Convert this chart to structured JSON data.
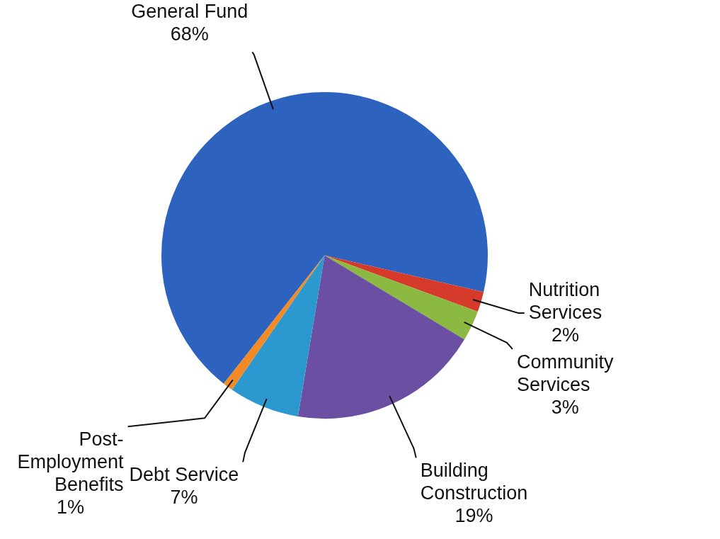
{
  "chart_data": {
    "type": "pie",
    "categories": [
      "General Fund",
      "Nutrition Services",
      "Community Services",
      "Building Construction",
      "Debt Service",
      "Post-Employment Benefits"
    ],
    "values": [
      68,
      2,
      3,
      19,
      7,
      1
    ],
    "colors": [
      "#2e62bf",
      "#d63a2a",
      "#8cb941",
      "#6b4fa2",
      "#2b98cf",
      "#f28b26"
    ],
    "value_labels": [
      "68%",
      "2%",
      "3%",
      "19%",
      "7%",
      "1%"
    ],
    "legend": false
  }
}
